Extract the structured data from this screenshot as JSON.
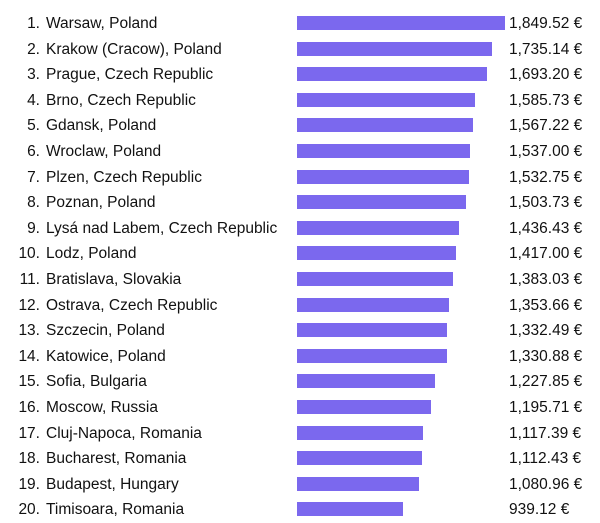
{
  "chart_data": {
    "type": "bar",
    "orientation": "horizontal",
    "bar_color": "#7b68ee",
    "categories": [
      "Warsaw, Poland",
      "Krakow (Cracow), Poland",
      "Prague, Czech Republic",
      "Brno, Czech Republic",
      "Gdansk, Poland",
      "Wroclaw, Poland",
      "Plzen, Czech Republic",
      "Poznan, Poland",
      "Lysá nad Labem, Czech Republic",
      "Lodz, Poland",
      "Bratislava, Slovakia",
      "Ostrava, Czech Republic",
      "Szczecin, Poland",
      "Katowice, Poland",
      "Sofia, Bulgaria",
      "Moscow, Russia",
      "Cluj-Napoca, Romania",
      "Bucharest, Romania",
      "Budapest, Hungary",
      "Timisoara, Romania"
    ],
    "ranks": [
      "1.",
      "2.",
      "3.",
      "4.",
      "5.",
      "6.",
      "7.",
      "8.",
      "9.",
      "10.",
      "11.",
      "12.",
      "13.",
      "14.",
      "15.",
      "16.",
      "17.",
      "18.",
      "19.",
      "20."
    ],
    "values": [
      1849.52,
      1735.14,
      1693.2,
      1585.73,
      1567.22,
      1537.0,
      1532.75,
      1503.73,
      1436.43,
      1417.0,
      1383.03,
      1353.66,
      1332.49,
      1330.88,
      1227.85,
      1195.71,
      1117.39,
      1112.43,
      1080.96,
      939.12
    ],
    "value_labels": [
      "1,849.52 €",
      "1,735.14 €",
      "1,693.20 €",
      "1,585.73 €",
      "1,567.22 €",
      "1,537.00 €",
      "1,532.75 €",
      "1,503.73 €",
      "1,436.43 €",
      "1,417.00 €",
      "1,383.03 €",
      "1,353.66 €",
      "1,332.49 €",
      "1,330.88 €",
      "1,227.85 €",
      "1,195.71 €",
      "1,117.39 €",
      "1,112.43 €",
      "1,080.96 €",
      "939.12 €"
    ]
  }
}
